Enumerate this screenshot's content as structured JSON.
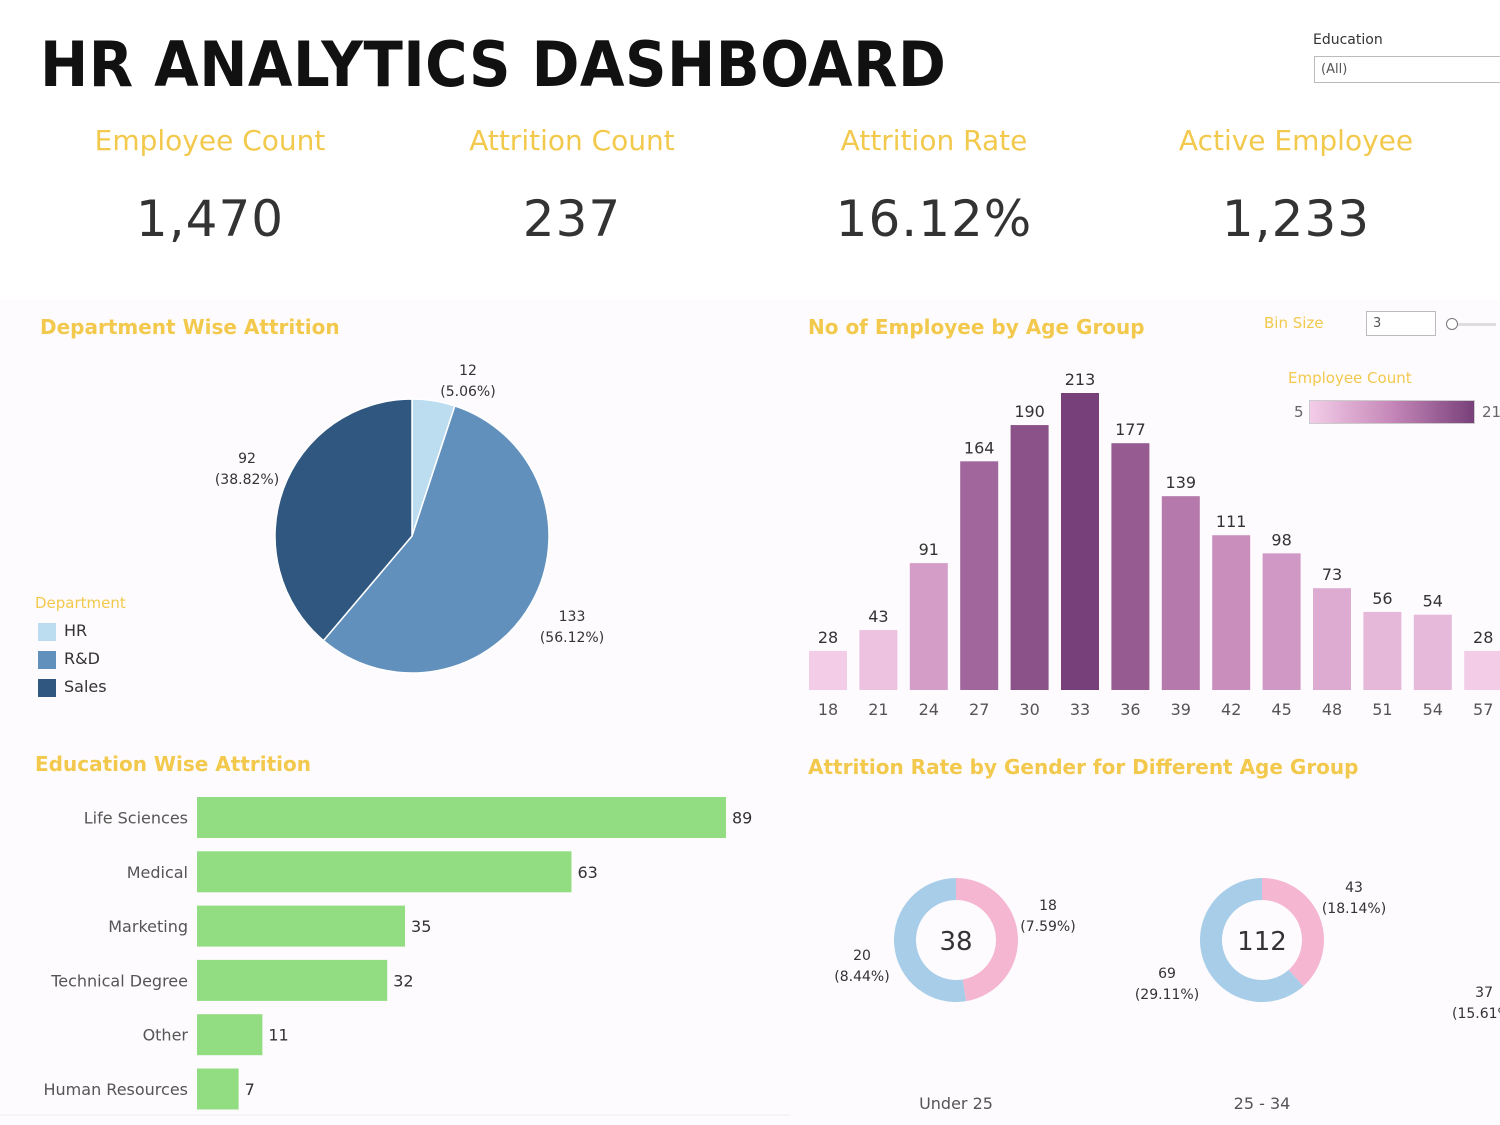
{
  "dashboard": {
    "title": "HR ANALYTICS DASHBOARD"
  },
  "filter": {
    "label": "Education",
    "value": "(All)"
  },
  "kpis": [
    {
      "label": "Employee Count",
      "value": "1,470"
    },
    {
      "label": "Attrition Count",
      "value": "237"
    },
    {
      "label": "Attrition Rate",
      "value": "16.12%"
    },
    {
      "label": "Active Employee",
      "value": "1,233"
    }
  ],
  "bin_control": {
    "label": "Bin Size",
    "value": "3"
  },
  "color_legend": {
    "title": "Employee Count",
    "min": "5",
    "max": "21"
  },
  "colors": {
    "accent": "#f2c94c",
    "hr": "#bcdcf0",
    "rnd": "#6190bd",
    "sales": "#2f5780",
    "edu_bar": "#92dd82",
    "male": "#a8cde8",
    "female": "#f5b6d2"
  },
  "chart_data": [
    {
      "type": "pie",
      "title": "Department Wise Attrition",
      "legend_title": "Department",
      "legend_position": "bottom-left",
      "slices": [
        {
          "name": "HR",
          "value": 12,
          "label": "12",
          "pct": "(5.06%)"
        },
        {
          "name": "R&D",
          "value": 133,
          "label": "133",
          "pct": "(56.12%)"
        },
        {
          "name": "Sales",
          "value": 92,
          "label": "92",
          "pct": "(38.82%)"
        }
      ]
    },
    {
      "type": "bar",
      "title": "No of Employee by Age Group",
      "categories": [
        "18",
        "21",
        "24",
        "27",
        "30",
        "33",
        "36",
        "39",
        "42",
        "45",
        "48",
        "51",
        "54",
        "57"
      ],
      "values": [
        28,
        43,
        91,
        164,
        190,
        213,
        177,
        139,
        111,
        98,
        73,
        56,
        54,
        28
      ],
      "ylim": [
        0,
        213
      ]
    },
    {
      "type": "bar",
      "orientation": "horizontal",
      "title": "Education Wise Attrition",
      "categories": [
        "Life Sciences",
        "Medical",
        "Marketing",
        "Technical Degree",
        "Other",
        "Human Resources"
      ],
      "values": [
        89,
        63,
        35,
        32,
        11,
        7
      ],
      "xlim": [
        0,
        89
      ]
    },
    {
      "type": "pie",
      "subtype": "donut",
      "title": "Attrition Rate by Gender for Different Age Group",
      "groups": [
        {
          "name": "Under 25",
          "total": "38",
          "male": {
            "value": 20,
            "label": "20",
            "pct": "(8.44%)"
          },
          "female": {
            "value": 18,
            "label": "18",
            "pct": "(7.59%)"
          }
        },
        {
          "name": "25 - 34",
          "total": "112",
          "male": {
            "value": 69,
            "label": "69",
            "pct": "(29.11%)"
          },
          "female": {
            "value": 43,
            "label": "43",
            "pct": "(18.14%)"
          }
        }
      ],
      "partial": {
        "label": "37",
        "pct": "(15.61%"
      }
    }
  ]
}
